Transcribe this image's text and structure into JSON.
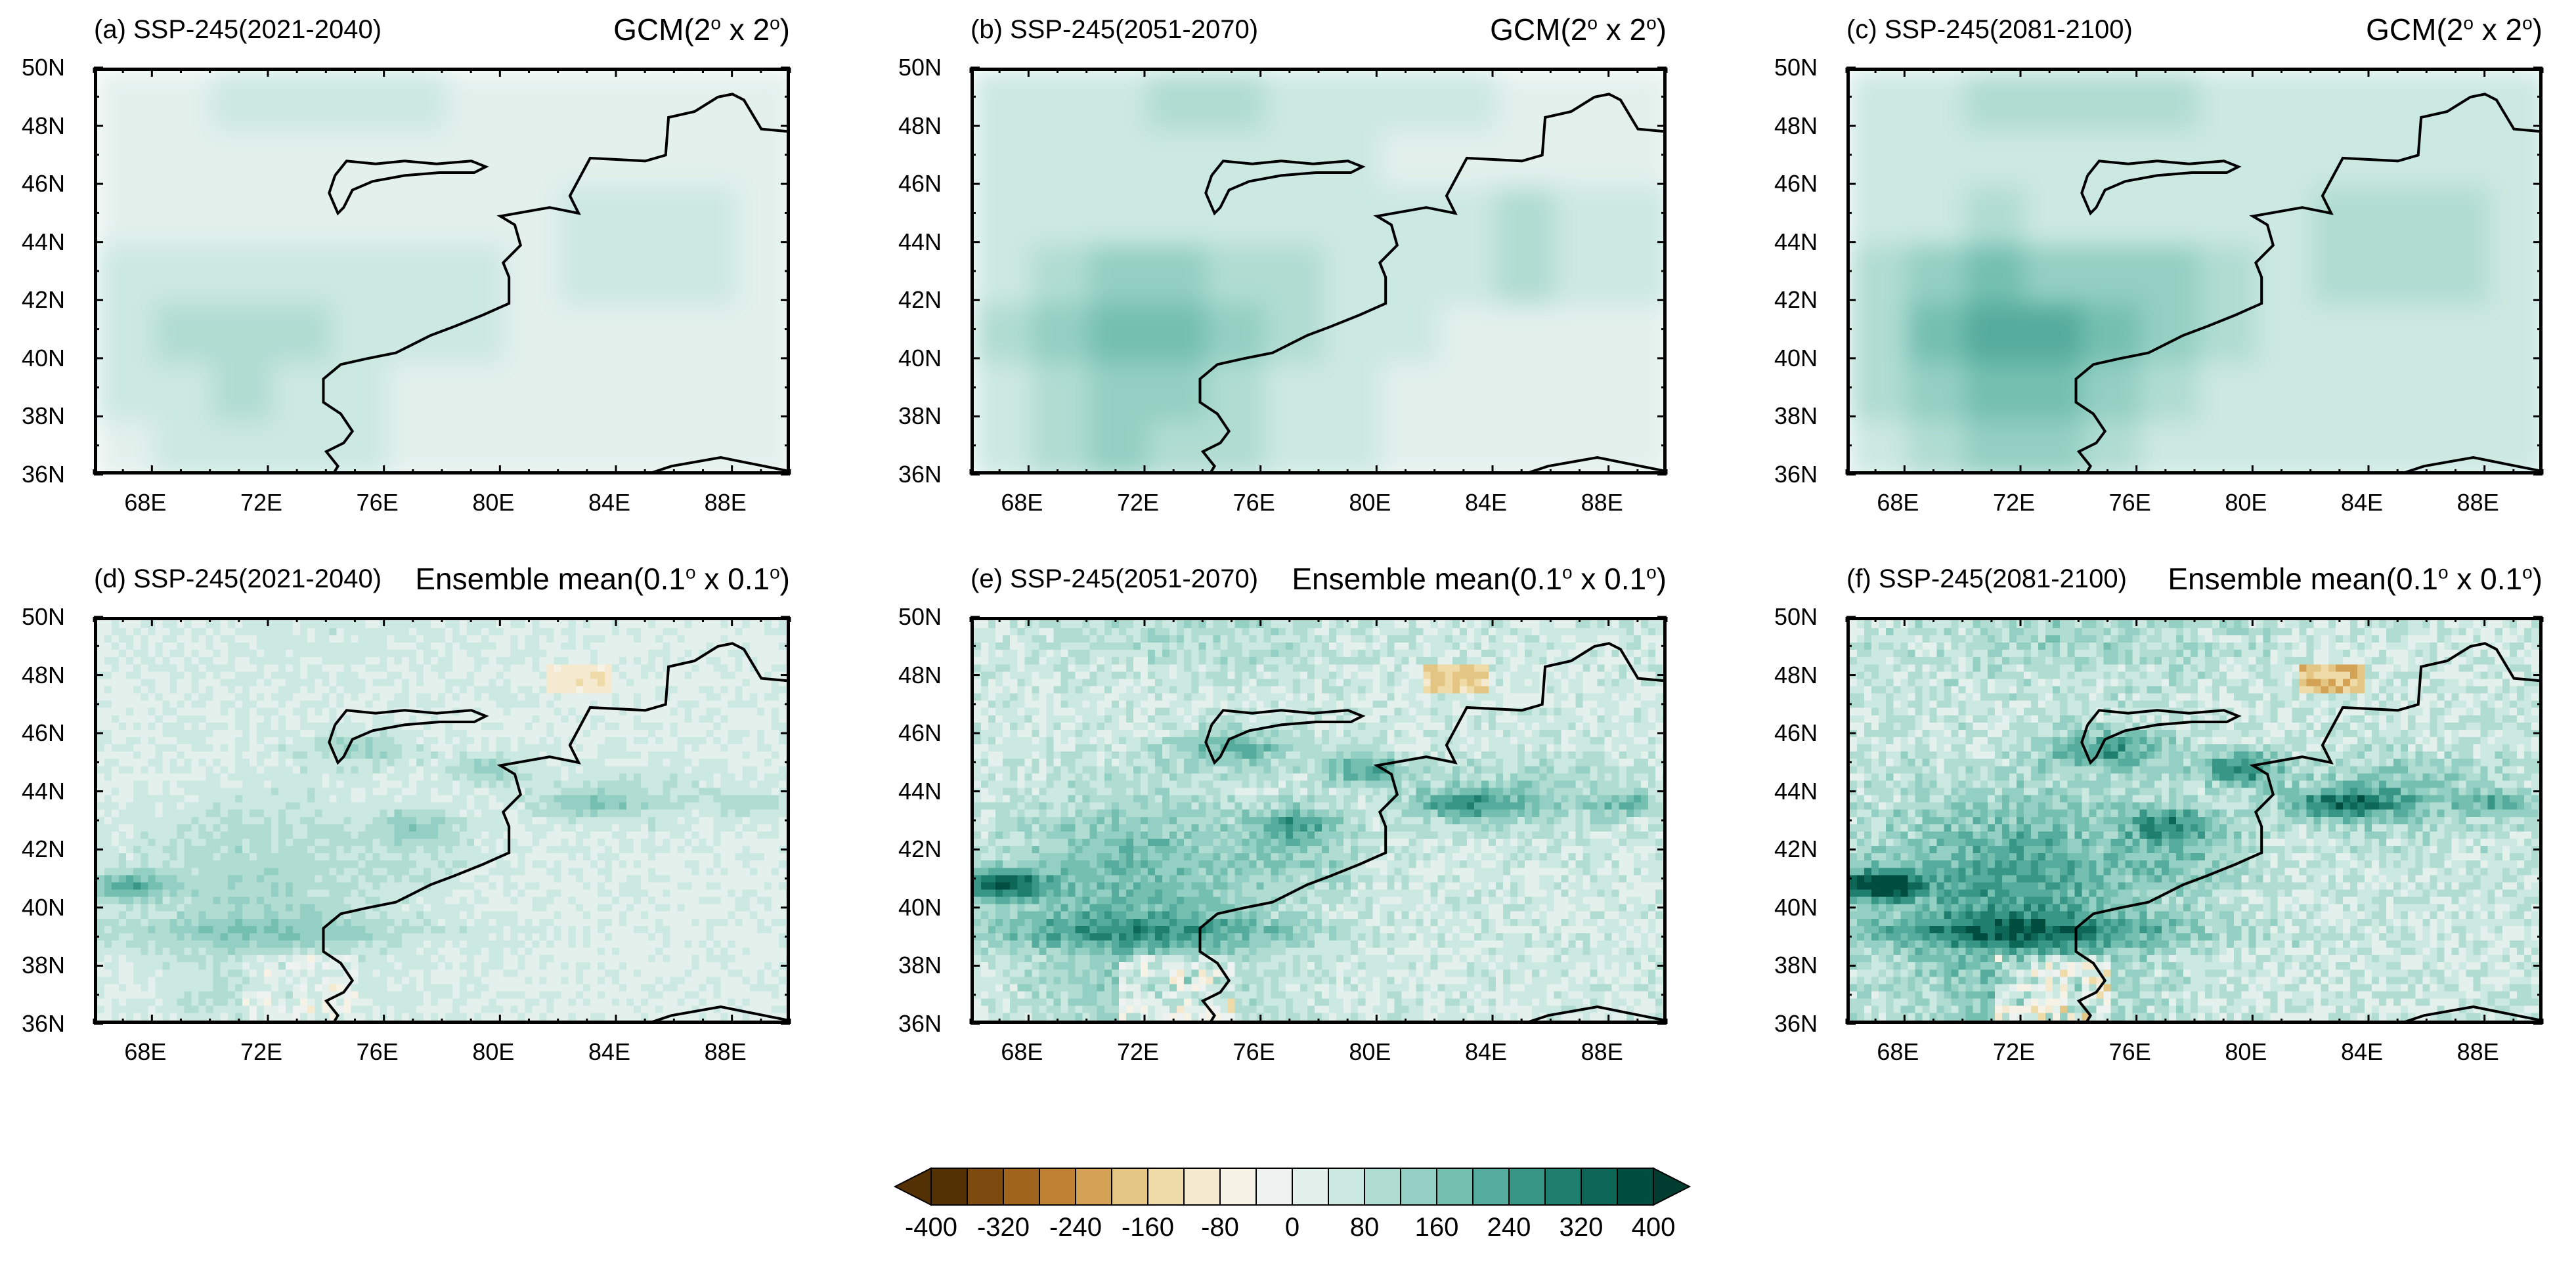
{
  "figure": {
    "axis": {
      "lat_labels": [
        "50N",
        "48N",
        "46N",
        "44N",
        "42N",
        "40N",
        "38N",
        "36N"
      ],
      "lon_labels": [
        "68E",
        "72E",
        "76E",
        "80E",
        "84E",
        "88E"
      ],
      "lat_range": [
        36,
        50
      ],
      "lon_range": [
        66,
        90
      ]
    },
    "panels": [
      {
        "id": "a",
        "left_title": "(a) SSP-245(2021-2040)",
        "right_main": "GCM(2",
        "right_sup1": "o",
        "right_mid": " x 2",
        "right_sup2": "o",
        "right_end": ")",
        "intensity": 0.45,
        "type": "gcm"
      },
      {
        "id": "b",
        "left_title": "(b) SSP-245(2051-2070)",
        "right_main": "GCM(2",
        "right_sup1": "o",
        "right_mid": " x 2",
        "right_sup2": "o",
        "right_end": ")",
        "intensity": 0.8,
        "type": "gcm"
      },
      {
        "id": "c",
        "left_title": "(c) SSP-245(2081-2100)",
        "right_main": "GCM(2",
        "right_sup1": "o",
        "right_mid": " x 2",
        "right_sup2": "o",
        "right_end": ")",
        "intensity": 1.0,
        "type": "gcm"
      },
      {
        "id": "d",
        "left_title": "(d) SSP-245(2021-2040)",
        "right_main": "Ensemble mean(0.1",
        "right_sup1": "o",
        "right_mid": " x 0.1",
        "right_sup2": "o",
        "right_end": ")",
        "intensity": 0.45,
        "type": "ensemble"
      },
      {
        "id": "e",
        "left_title": "(e) SSP-245(2051-2070)",
        "right_main": "Ensemble mean(0.1",
        "right_sup1": "o",
        "right_mid": " x 0.1",
        "right_sup2": "o",
        "right_end": ")",
        "intensity": 0.8,
        "type": "ensemble"
      },
      {
        "id": "f",
        "left_title": "(f) SSP-245(2081-2100)",
        "right_main": "Ensemble mean(0.1",
        "right_sup1": "o",
        "right_mid": " x 0.1",
        "right_sup2": "o",
        "right_end": ")",
        "intensity": 1.0,
        "type": "ensemble"
      }
    ],
    "colorbar": {
      "levels": [
        -400,
        -360,
        -320,
        -280,
        -240,
        -200,
        -160,
        -120,
        -80,
        -40,
        0,
        40,
        80,
        120,
        160,
        200,
        240,
        280,
        320,
        360,
        400
      ],
      "labels": [
        "-400",
        "-320",
        "-240",
        "-160",
        "-80",
        "0",
        "80",
        "160",
        "240",
        "320",
        "400"
      ],
      "colors": [
        "#543005",
        "#7d4a0f",
        "#a0641c",
        "#bf8232",
        "#d4a255",
        "#e3c584",
        "#efdba8",
        "#f5ead0",
        "#f6f2e6",
        "#eef3f1",
        "#e3f0ec",
        "#cbe8e1",
        "#b0dcd2",
        "#93cfc2",
        "#74bfb0",
        "#55ac9c",
        "#389686",
        "#1f7f6e",
        "#0d6757",
        "#014d40"
      ],
      "under_color": "#543005",
      "over_color": "#003c30"
    }
  },
  "colors": {
    "frame": "#000000",
    "background": "#ffffff"
  }
}
